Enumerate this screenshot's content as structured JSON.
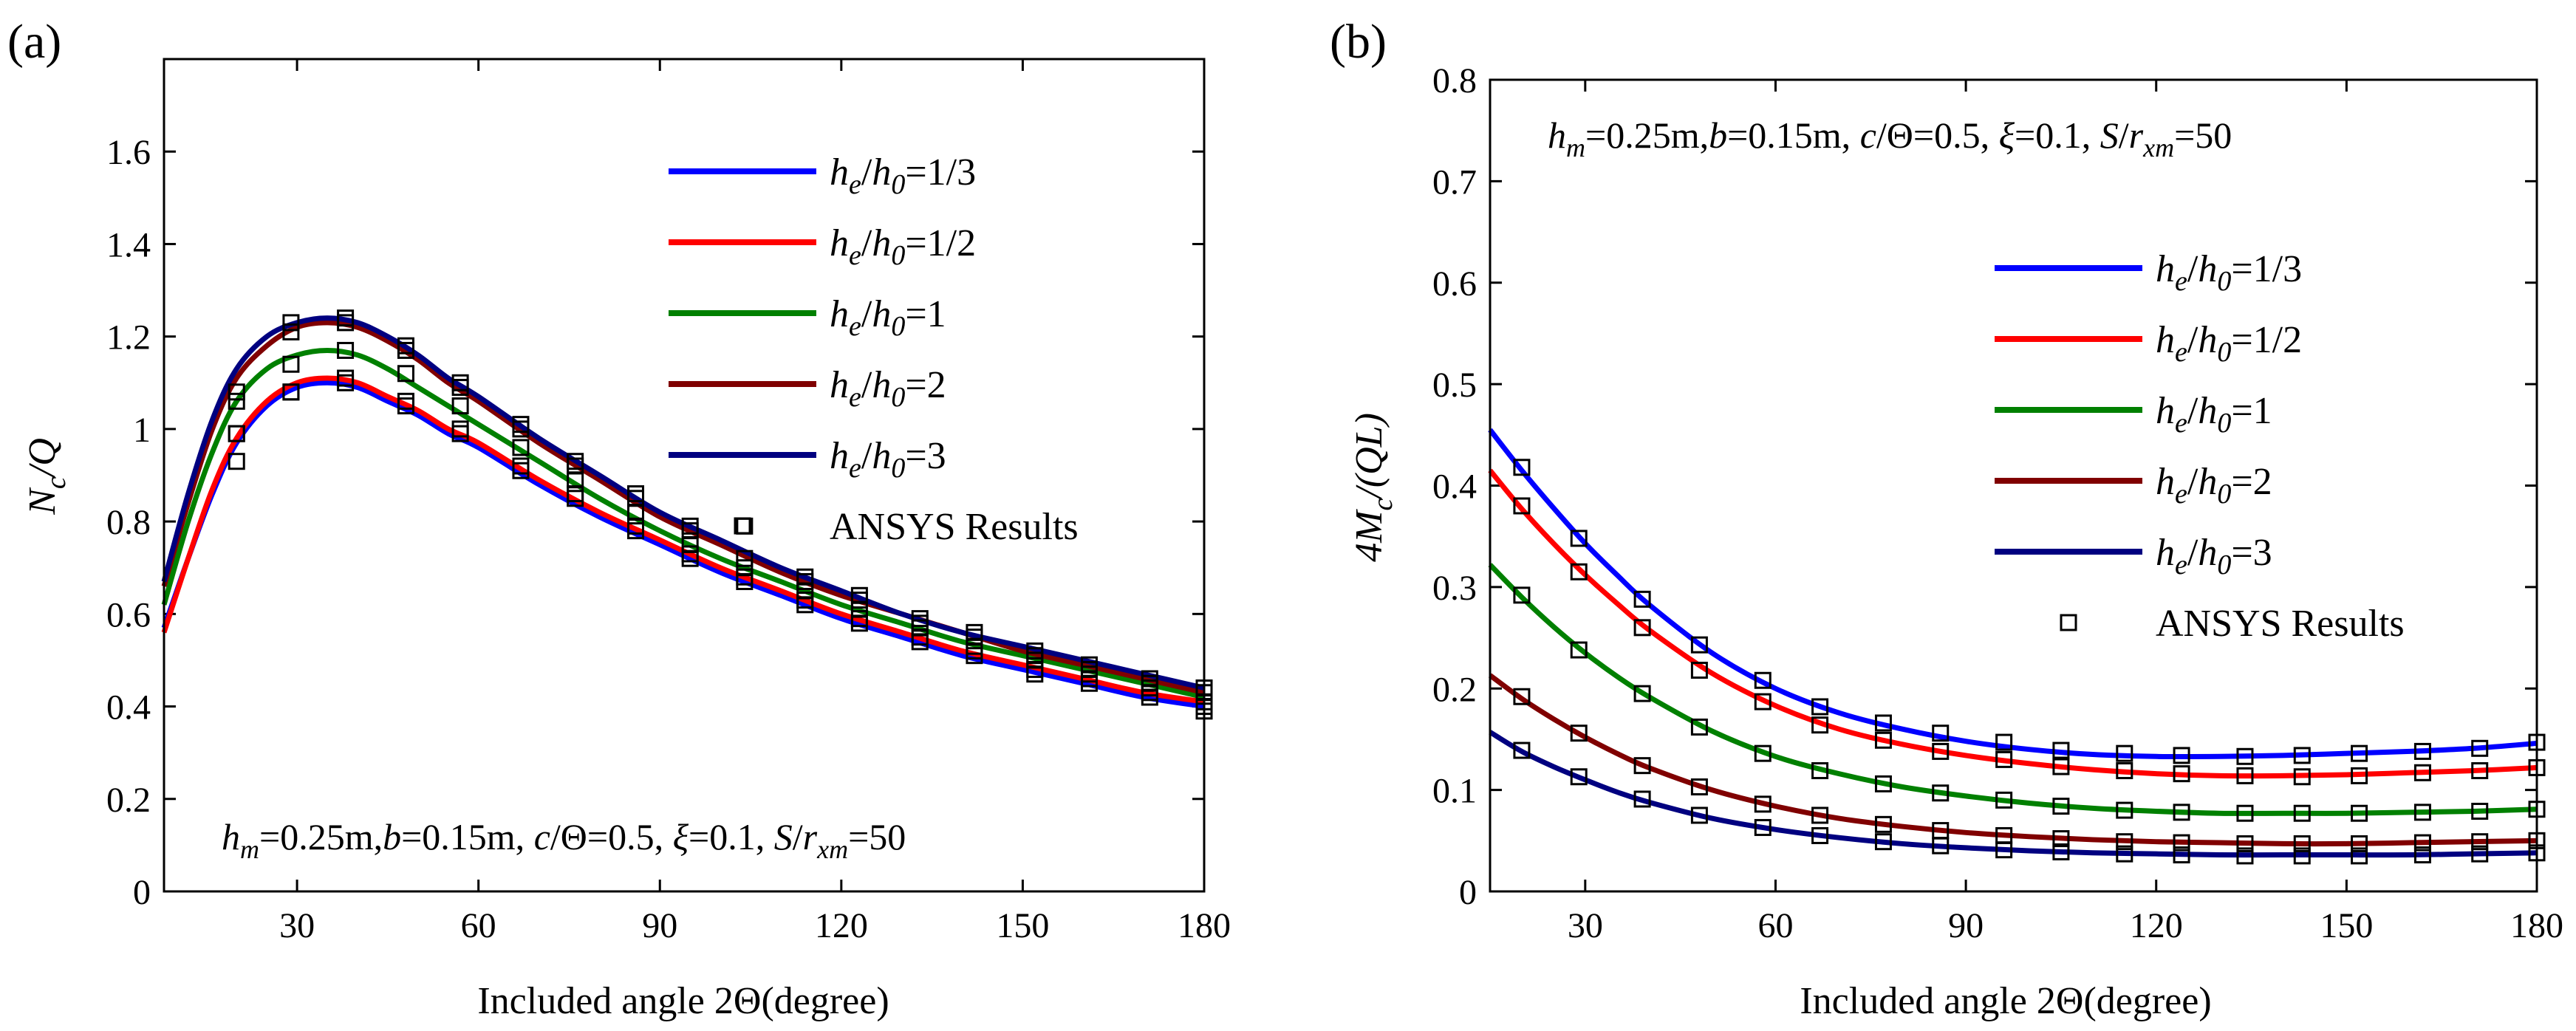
{
  "charts": [
    {
      "panel_label": "(a)",
      "xlabel": "Included angle 2Θ(degree)",
      "ylabel": {
        "main": "N",
        "sub": "c",
        "tail": "/Q"
      },
      "annotation": "h_m=0.25m,b=0.15m, c/Θ=0.5, ξ=0.1, S/r_xm=50",
      "legend_extra": "ANSYS Results"
    },
    {
      "panel_label": "(b)",
      "xlabel": "Included angle 2Θ(degree)",
      "ylabel": {
        "main": "4M",
        "sub": "c",
        "tail": "/(QL)"
      },
      "annotation": "h_m=0.25m,b=0.15m, c/Θ=0.5, ξ=0.1, S/r_xm=50",
      "legend_extra": "ANSYS Results"
    }
  ],
  "chart_data": [
    {
      "type": "line",
      "xlim": [
        8,
        180
      ],
      "ylim": [
        0,
        1.8
      ],
      "xticks": [
        30,
        60,
        90,
        120,
        150,
        180
      ],
      "yticks": [
        0,
        0.2,
        0.4,
        0.6,
        0.8,
        1,
        1.2,
        1.4,
        1.6
      ],
      "ytick_labels": [
        "0",
        "0.2",
        "0.4",
        "0.6",
        "0.8",
        "1",
        "1.2",
        "1.4",
        "1.6"
      ],
      "legend_position": "top-right",
      "grid": false,
      "series": [
        {
          "name": "h_e/h_0=1/3",
          "color": "#0000ff",
          "x": [
            8,
            12,
            16,
            20,
            25,
            30,
            35,
            40,
            45,
            50,
            55,
            60,
            70,
            80,
            90,
            100,
            110,
            120,
            130,
            140,
            150,
            160,
            170,
            180
          ],
          "y": [
            0.57,
            0.72,
            0.86,
            0.97,
            1.05,
            1.09,
            1.1,
            1.09,
            1.06,
            1.03,
            0.99,
            0.96,
            0.88,
            0.81,
            0.75,
            0.69,
            0.64,
            0.59,
            0.55,
            0.51,
            0.48,
            0.45,
            0.42,
            0.4
          ],
          "markers_x": [
            20,
            29,
            38,
            48,
            57,
            67,
            76,
            86,
            95,
            104,
            114,
            123,
            133,
            142,
            152,
            161,
            171,
            180
          ],
          "markers_y": [
            0.93,
            1.08,
            1.1,
            1.05,
            0.99,
            0.91,
            0.85,
            0.78,
            0.72,
            0.67,
            0.62,
            0.58,
            0.54,
            0.51,
            0.47,
            0.45,
            0.42,
            0.39
          ]
        },
        {
          "name": "h_e/h_0=1/2",
          "color": "#ff0000",
          "x": [
            8,
            12,
            16,
            20,
            25,
            30,
            35,
            40,
            45,
            50,
            55,
            60,
            70,
            80,
            90,
            100,
            110,
            120,
            130,
            140,
            150,
            160,
            170,
            180
          ],
          "y": [
            0.56,
            0.72,
            0.87,
            0.98,
            1.06,
            1.1,
            1.11,
            1.1,
            1.07,
            1.04,
            1.0,
            0.97,
            0.89,
            0.82,
            0.76,
            0.7,
            0.65,
            0.6,
            0.56,
            0.52,
            0.49,
            0.46,
            0.43,
            0.41
          ],
          "markers_x": [
            20,
            29,
            38,
            48,
            57,
            67,
            76,
            86,
            95,
            104,
            114,
            123,
            133,
            142,
            152,
            161,
            171,
            180
          ],
          "markers_y": [
            0.99,
            1.08,
            1.11,
            1.06,
            1.0,
            0.92,
            0.86,
            0.79,
            0.73,
            0.68,
            0.63,
            0.59,
            0.55,
            0.52,
            0.48,
            0.46,
            0.43,
            0.4
          ]
        },
        {
          "name": "h_e/h_0=1",
          "color": "#008000",
          "x": [
            8,
            12,
            16,
            20,
            25,
            30,
            35,
            40,
            45,
            50,
            55,
            60,
            70,
            80,
            90,
            100,
            110,
            120,
            130,
            140,
            150,
            160,
            170,
            180
          ],
          "y": [
            0.62,
            0.8,
            0.95,
            1.06,
            1.13,
            1.16,
            1.17,
            1.16,
            1.13,
            1.09,
            1.05,
            1.01,
            0.93,
            0.85,
            0.78,
            0.72,
            0.67,
            0.62,
            0.58,
            0.54,
            0.51,
            0.48,
            0.45,
            0.42
          ],
          "markers_x": [
            20,
            29,
            38,
            48,
            57,
            67,
            76,
            86,
            95,
            104,
            114,
            123,
            133,
            142,
            152,
            161,
            171,
            180
          ],
          "markers_y": [
            0.99,
            1.14,
            1.17,
            1.12,
            1.05,
            0.96,
            0.89,
            0.82,
            0.75,
            0.7,
            0.65,
            0.61,
            0.57,
            0.53,
            0.5,
            0.47,
            0.44,
            0.41
          ]
        },
        {
          "name": "h_e/h_0=2",
          "color": "#800000",
          "x": [
            8,
            12,
            16,
            20,
            25,
            30,
            35,
            40,
            45,
            50,
            55,
            60,
            70,
            80,
            90,
            100,
            110,
            120,
            130,
            140,
            150,
            160,
            170,
            180
          ],
          "y": [
            0.66,
            0.84,
            1.0,
            1.11,
            1.18,
            1.22,
            1.23,
            1.22,
            1.19,
            1.15,
            1.1,
            1.06,
            0.97,
            0.89,
            0.81,
            0.75,
            0.69,
            0.64,
            0.6,
            0.56,
            0.52,
            0.49,
            0.46,
            0.43
          ],
          "markers_x": [
            20,
            29,
            38,
            48,
            57,
            67,
            76,
            86,
            95,
            104,
            114,
            123,
            133,
            142,
            152,
            161,
            171,
            180
          ],
          "markers_y": [
            1.06,
            1.21,
            1.23,
            1.17,
            1.09,
            1.0,
            0.92,
            0.85,
            0.78,
            0.72,
            0.67,
            0.63,
            0.58,
            0.55,
            0.51,
            0.48,
            0.45,
            0.43
          ]
        },
        {
          "name": "h_e/h_0=3",
          "color": "#000080",
          "x": [
            8,
            12,
            16,
            20,
            25,
            30,
            35,
            40,
            45,
            50,
            55,
            60,
            70,
            80,
            90,
            100,
            110,
            120,
            130,
            140,
            150,
            160,
            170,
            180
          ],
          "y": [
            0.67,
            0.86,
            1.02,
            1.13,
            1.2,
            1.23,
            1.24,
            1.23,
            1.2,
            1.16,
            1.11,
            1.07,
            0.98,
            0.9,
            0.82,
            0.76,
            0.7,
            0.65,
            0.6,
            0.56,
            0.53,
            0.5,
            0.47,
            0.44
          ],
          "markers_x": [
            20,
            29,
            38,
            48,
            57,
            67,
            76,
            86,
            95,
            104,
            114,
            123,
            133,
            142,
            152,
            161,
            171,
            180
          ],
          "markers_y": [
            1.08,
            1.23,
            1.24,
            1.18,
            1.1,
            1.01,
            0.93,
            0.86,
            0.79,
            0.79,
            0.68,
            0.64,
            0.59,
            0.56,
            0.52,
            0.49,
            0.46,
            0.44
          ]
        }
      ]
    },
    {
      "type": "line",
      "xlim": [
        15,
        180
      ],
      "ylim": [
        0,
        0.8
      ],
      "xticks": [
        30,
        60,
        90,
        120,
        150,
        180
      ],
      "yticks": [
        0,
        0.1,
        0.2,
        0.3,
        0.4,
        0.5,
        0.6,
        0.7,
        0.8
      ],
      "ytick_labels": [
        "0",
        "0.1",
        "0.2",
        "0.3",
        "0.4",
        "0.5",
        "0.6",
        "0.7",
        "0.8"
      ],
      "legend_position": "middle-right",
      "grid": false,
      "series": [
        {
          "name": "h_e/h_0=1/3",
          "color": "#0000ff",
          "x": [
            15,
            20,
            25,
            30,
            35,
            40,
            50,
            60,
            70,
            80,
            90,
            100,
            110,
            120,
            130,
            140,
            150,
            160,
            170,
            180
          ],
          "y": [
            0.455,
            0.415,
            0.378,
            0.343,
            0.312,
            0.283,
            0.235,
            0.2,
            0.176,
            0.16,
            0.148,
            0.14,
            0.135,
            0.133,
            0.133,
            0.134,
            0.136,
            0.138,
            0.141,
            0.146
          ],
          "markers_x": [
            20,
            29,
            39,
            48,
            58,
            67,
            77,
            86,
            96,
            105,
            115,
            124,
            134,
            143,
            152,
            162,
            171,
            180
          ],
          "markers_y": [
            0.418,
            0.348,
            0.288,
            0.243,
            0.208,
            0.182,
            0.166,
            0.156,
            0.147,
            0.139,
            0.136,
            0.134,
            0.133,
            0.134,
            0.136,
            0.138,
            0.141,
            0.147
          ]
        },
        {
          "name": "h_e/h_0=1/2",
          "color": "#ff0000",
          "x": [
            15,
            20,
            25,
            30,
            35,
            40,
            50,
            60,
            70,
            80,
            90,
            100,
            110,
            120,
            130,
            140,
            150,
            160,
            170,
            180
          ],
          "y": [
            0.415,
            0.377,
            0.343,
            0.312,
            0.284,
            0.258,
            0.215,
            0.183,
            0.16,
            0.145,
            0.134,
            0.126,
            0.12,
            0.116,
            0.114,
            0.114,
            0.115,
            0.117,
            0.119,
            0.122
          ],
          "markers_x": [
            20,
            29,
            39,
            48,
            58,
            67,
            77,
            86,
            96,
            105,
            115,
            124,
            134,
            143,
            152,
            162,
            171,
            180
          ],
          "markers_y": [
            0.38,
            0.315,
            0.26,
            0.218,
            0.187,
            0.164,
            0.149,
            0.138,
            0.13,
            0.123,
            0.119,
            0.116,
            0.114,
            0.113,
            0.114,
            0.117,
            0.119,
            0.122
          ]
        },
        {
          "name": "h_e/h_0=1",
          "color": "#008000",
          "x": [
            15,
            20,
            25,
            30,
            35,
            40,
            50,
            60,
            70,
            80,
            90,
            100,
            110,
            120,
            130,
            140,
            150,
            160,
            170,
            180
          ],
          "y": [
            0.322,
            0.29,
            0.261,
            0.235,
            0.212,
            0.192,
            0.158,
            0.133,
            0.116,
            0.103,
            0.094,
            0.087,
            0.082,
            0.079,
            0.077,
            0.077,
            0.077,
            0.078,
            0.079,
            0.081
          ],
          "markers_x": [
            20,
            29,
            39,
            48,
            58,
            67,
            77,
            86,
            96,
            105,
            115,
            124,
            134,
            143,
            152,
            162,
            171,
            180
          ],
          "markers_y": [
            0.292,
            0.238,
            0.195,
            0.162,
            0.136,
            0.119,
            0.106,
            0.097,
            0.09,
            0.084,
            0.08,
            0.078,
            0.077,
            0.077,
            0.077,
            0.078,
            0.079,
            0.081
          ]
        },
        {
          "name": "h_e/h_0=2",
          "color": "#800000",
          "x": [
            15,
            20,
            25,
            30,
            35,
            40,
            50,
            60,
            70,
            80,
            90,
            100,
            110,
            120,
            130,
            140,
            150,
            160,
            170,
            180
          ],
          "y": [
            0.213,
            0.19,
            0.17,
            0.152,
            0.136,
            0.122,
            0.1,
            0.084,
            0.072,
            0.064,
            0.058,
            0.054,
            0.051,
            0.049,
            0.048,
            0.047,
            0.047,
            0.048,
            0.049,
            0.05
          ],
          "markers_x": [
            20,
            29,
            39,
            48,
            58,
            67,
            77,
            86,
            96,
            105,
            115,
            124,
            134,
            143,
            152,
            162,
            171,
            180
          ],
          "markers_y": [
            0.192,
            0.156,
            0.124,
            0.103,
            0.086,
            0.075,
            0.066,
            0.06,
            0.055,
            0.052,
            0.049,
            0.048,
            0.047,
            0.047,
            0.047,
            0.048,
            0.049,
            0.05
          ]
        },
        {
          "name": "h_e/h_0=3",
          "color": "#000080",
          "x": [
            15,
            20,
            25,
            30,
            35,
            40,
            50,
            60,
            70,
            80,
            90,
            100,
            110,
            120,
            130,
            140,
            150,
            160,
            170,
            180
          ],
          "y": [
            0.157,
            0.138,
            0.123,
            0.11,
            0.098,
            0.088,
            0.072,
            0.061,
            0.053,
            0.047,
            0.043,
            0.04,
            0.038,
            0.037,
            0.036,
            0.036,
            0.036,
            0.036,
            0.037,
            0.038
          ],
          "markers_x": [
            20,
            29,
            39,
            48,
            58,
            67,
            77,
            86,
            96,
            105,
            115,
            124,
            134,
            143,
            152,
            162,
            171,
            180
          ],
          "markers_y": [
            0.139,
            0.113,
            0.091,
            0.075,
            0.063,
            0.055,
            0.049,
            0.045,
            0.041,
            0.039,
            0.037,
            0.036,
            0.035,
            0.035,
            0.035,
            0.036,
            0.037,
            0.038
          ]
        }
      ]
    }
  ]
}
